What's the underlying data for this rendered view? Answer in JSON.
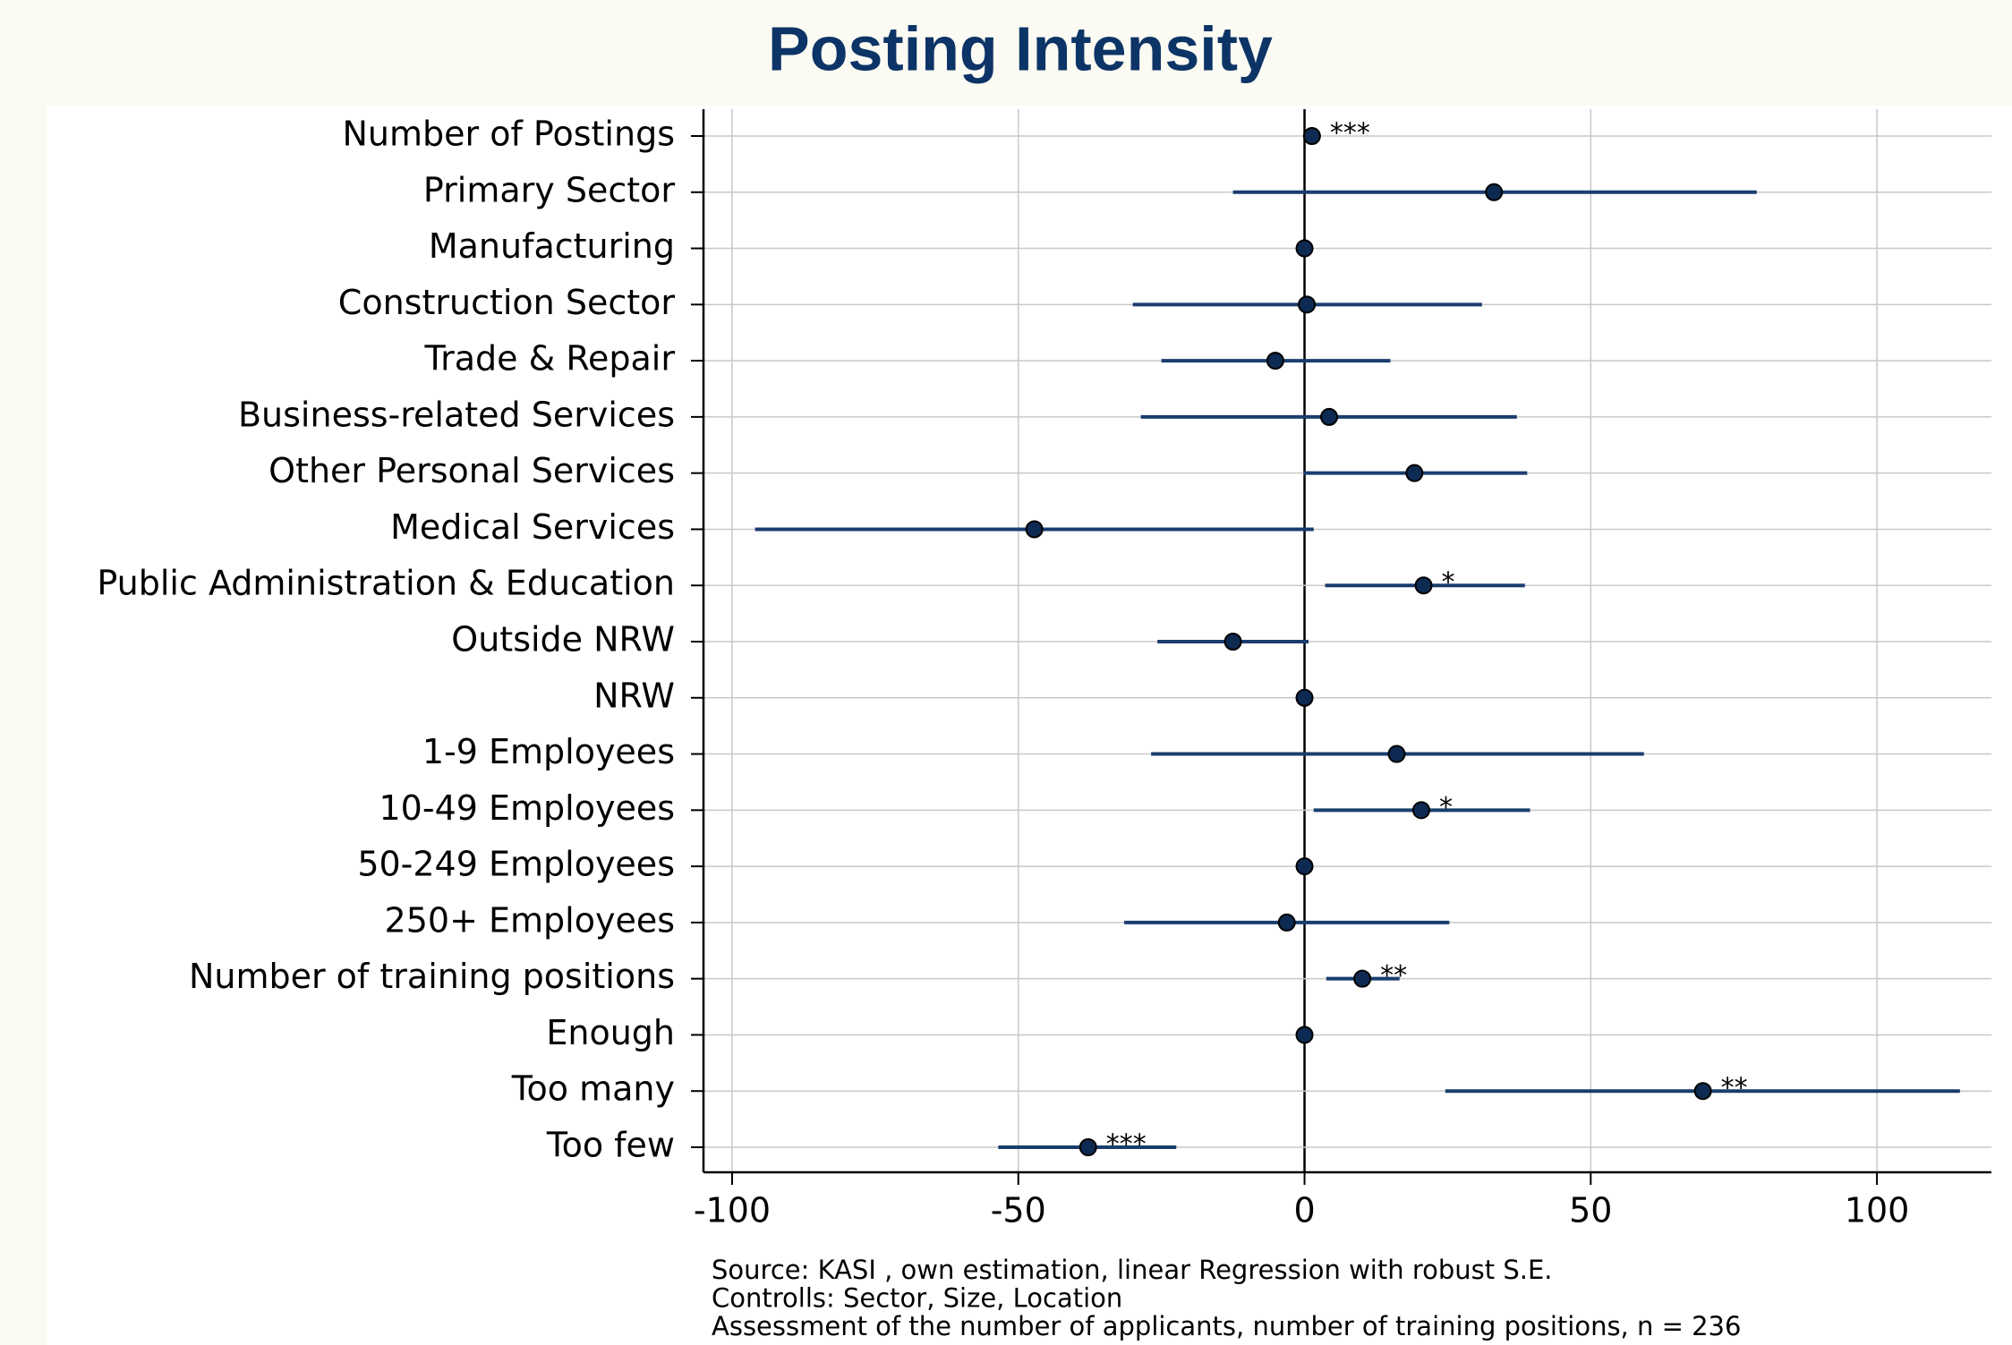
{
  "chart_data": {
    "type": "coefplot",
    "title": "Posting Intensity",
    "categories": [
      "Number of Postings",
      "Primary Sector",
      "Manufacturing",
      "Construction Sector",
      "Trade & Repair",
      "Business-related Services",
      "Other Personal Services",
      "Medical Services",
      "Public Administration & Education",
      "Outside NRW",
      "NRW",
      "1-9 Employees",
      "10-49 Employees",
      "50-249 Employees",
      "250+ Employees",
      "Number of training positions",
      "Enough",
      "Too many",
      "Too few"
    ],
    "values": [
      1.3,
      33.1,
      0,
      0.4,
      -5.1,
      4.3,
      19.2,
      -47.2,
      20.8,
      -12.5,
      0,
      16.1,
      20.4,
      0,
      -3.1,
      10.1,
      0,
      69.6,
      -37.8
    ],
    "lower": [
      1.0,
      -12.5,
      null,
      -30,
      -25,
      -28.6,
      -0.2,
      -96,
      3.6,
      -25.7,
      null,
      -26.8,
      1.6,
      null,
      -31.5,
      3.8,
      null,
      24.6,
      -53.5
    ],
    "upper": [
      1.6,
      79,
      null,
      31,
      15,
      37.1,
      38.9,
      1.6,
      38.5,
      0.7,
      null,
      59.3,
      39.4,
      null,
      25.3,
      16.6,
      null,
      114.5,
      -22.4
    ],
    "significance": [
      "***",
      null,
      null,
      null,
      null,
      null,
      null,
      null,
      "*",
      null,
      null,
      null,
      "*",
      null,
      null,
      "**",
      null,
      "**",
      "***"
    ],
    "color": "#0d2a52",
    "xlim": [
      -105,
      120
    ],
    "xticks": [
      -100,
      -50,
      0,
      50,
      100
    ],
    "grid": true,
    "notes": [
      "Source: KASI , own estimation, linear Regression with robust S.E.",
      "Controlls: Sector, Size, Location",
      "Assessment of the number of applicants, number of training positions, n = 236"
    ]
  }
}
